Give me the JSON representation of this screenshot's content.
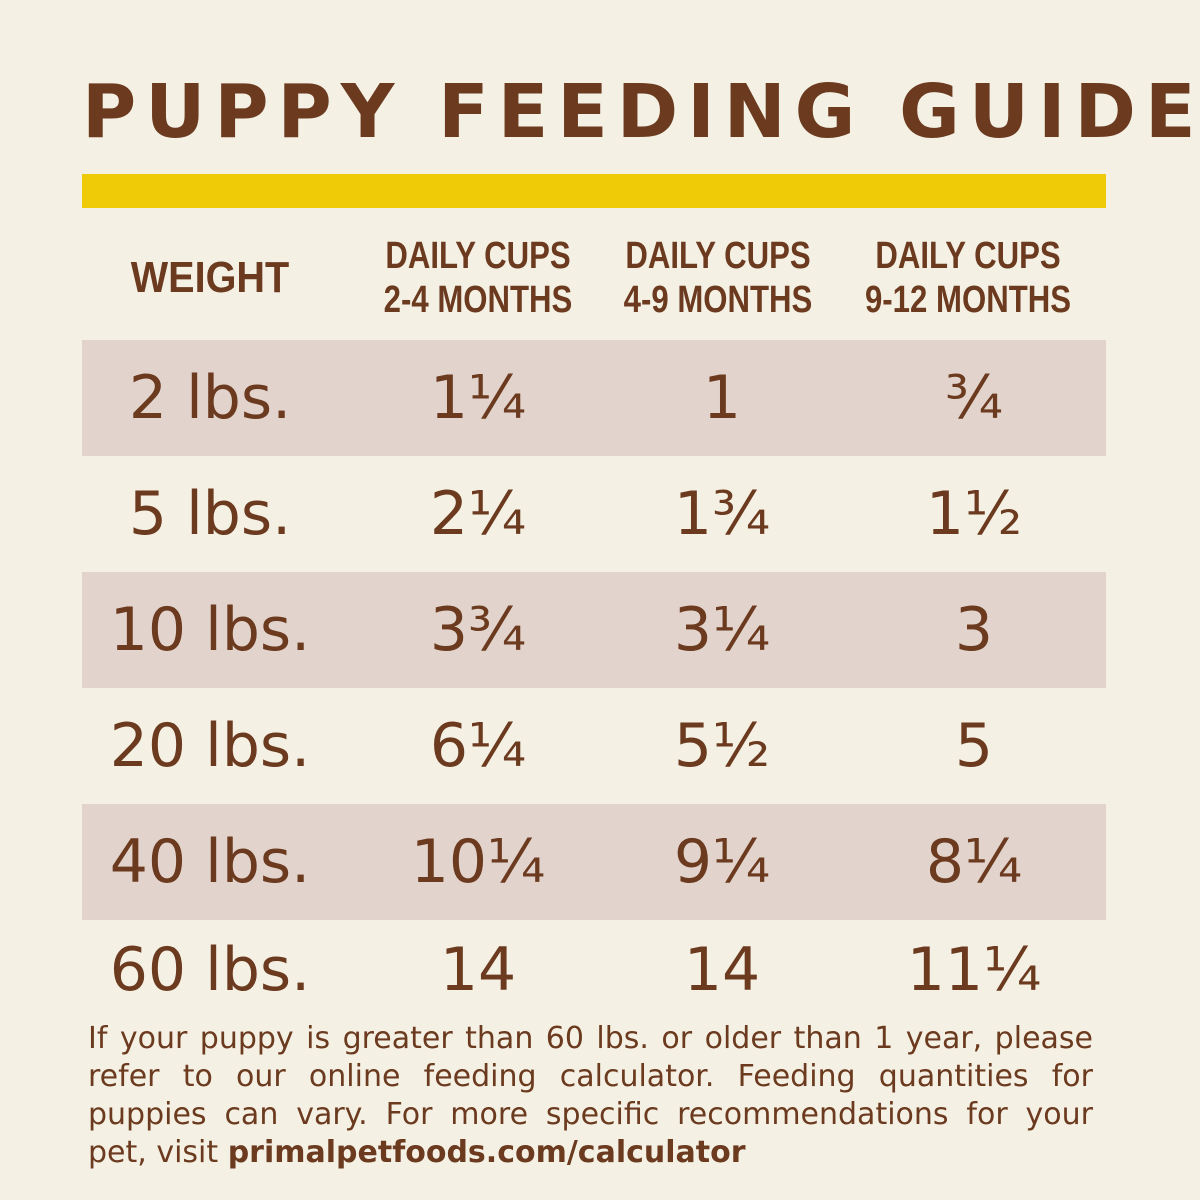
{
  "title": "PUPPY FEEDING GUIDE",
  "colors": {
    "text": "#6b3a1f",
    "background": "#f4f1e4",
    "accent_bar": "#eecb06",
    "row_shade": "#e2d4cc"
  },
  "table": {
    "headers": [
      {
        "line1": "WEIGHT",
        "line2": ""
      },
      {
        "line1": "DAILY CUPS",
        "line2": "2-4 MONTHS"
      },
      {
        "line1": "DAILY CUPS",
        "line2": "4-9 MONTHS"
      },
      {
        "line1": "DAILY CUPS",
        "line2": "9-12 MONTHS"
      }
    ],
    "rows": [
      [
        "2 lbs.",
        "1¼",
        "1",
        "¾"
      ],
      [
        "5 lbs.",
        "2¼",
        "1¾",
        "1½"
      ],
      [
        "10 lbs.",
        "3¾",
        "3¼",
        "3"
      ],
      [
        "20 lbs.",
        "6¼",
        "5½",
        "5"
      ],
      [
        "40 lbs.",
        "10¼",
        "9¼",
        "8¼"
      ],
      [
        "60 lbs.",
        "14",
        "14",
        "11¼"
      ]
    ]
  },
  "footer": {
    "text": "If your puppy is greater than 60 lbs. or older than 1 year, please refer to our online feeding calculator. Feeding quantities for puppies can vary. For more specific recommendations for your pet, visit ",
    "link": "primalpetfoods.com/calculator"
  }
}
